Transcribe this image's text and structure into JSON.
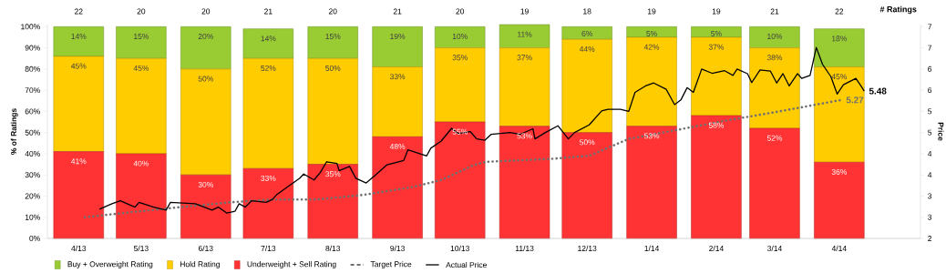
{
  "chart_data": {
    "type": "bar",
    "stacked": true,
    "x": [
      "2013-04-15",
      "2013-05-15",
      "2013-06-15",
      "2013-07-15",
      "2013-08-15",
      "2013-09-15",
      "2013-10-15",
      "2013-11-15",
      "2013-12-15",
      "2014-01-15",
      "2014-02-15",
      "2014-03-15",
      "2014-04-15"
    ],
    "xlim": [
      "2013-03-31",
      "2014-05-24"
    ],
    "xticks": [
      {
        "value": "2013-04-15",
        "label": "4/13"
      },
      {
        "value": "2013-05-15",
        "label": "5/13"
      },
      {
        "value": "2013-06-15",
        "label": "6/13"
      },
      {
        "value": "2013-07-15",
        "label": "7/13"
      },
      {
        "value": "2013-08-15",
        "label": "8/13"
      },
      {
        "value": "2013-09-15",
        "label": "9/13"
      },
      {
        "value": "2013-10-15",
        "label": "10/13"
      },
      {
        "value": "2013-11-15",
        "label": "11/13"
      },
      {
        "value": "2013-12-15",
        "label": "12/13"
      },
      {
        "value": "2014-01-15",
        "label": "1/14"
      },
      {
        "value": "2014-02-15",
        "label": "2/14"
      },
      {
        "value": "2014-03-15",
        "label": "3/14"
      },
      {
        "value": "2014-04-15",
        "label": "4/14"
      }
    ],
    "ylabel": "% of Ratings",
    "y2label": "Price",
    "ylim": [
      0,
      101
    ],
    "yticks": [
      {
        "value": 0,
        "label": "0%"
      },
      {
        "value": 10,
        "label": "10%"
      },
      {
        "value": 20,
        "label": "20%"
      },
      {
        "value": 30,
        "label": "30%"
      },
      {
        "value": 40,
        "label": "40%"
      },
      {
        "value": 50,
        "label": "50%"
      },
      {
        "value": 60,
        "label": "60%"
      },
      {
        "value": 70,
        "label": "70%"
      },
      {
        "value": 80,
        "label": "80%"
      },
      {
        "value": 90,
        "label": "90%"
      },
      {
        "value": 100,
        "label": "100%"
      }
    ],
    "y2lim": [
      2,
      7.05
    ],
    "y2ticks": [
      2,
      {
        "value": 2.5,
        "label": "3"
      },
      3,
      {
        "value": 3.5,
        "label": "4"
      },
      4,
      {
        "value": 4.5,
        "label": "5"
      },
      5,
      {
        "value": 5.5,
        "label": "6"
      },
      6,
      {
        "value": 6.5,
        "label": "7"
      },
      7
    ],
    "annotations": [
      "# Ratings",
      {
        "text": "22",
        "x": "2013-04-15",
        "y": 101
      },
      {
        "text": "20",
        "x": "2013-05-15",
        "y": 101
      },
      {
        "text": "20",
        "x": "2013-06-15",
        "y": 101
      },
      {
        "text": "21",
        "x": "2013-07-15",
        "y": 101
      },
      {
        "text": "20",
        "x": "2013-08-15",
        "y": 101
      },
      {
        "text": "21",
        "x": "2013-09-15",
        "y": 101
      },
      {
        "text": "20",
        "x": "2013-10-15",
        "y": 101
      },
      {
        "text": "19",
        "x": "2013-11-15",
        "y": 101
      },
      {
        "text": "18",
        "x": "2013-12-15",
        "y": 101
      },
      {
        "text": "19",
        "x": "2014-01-15",
        "y": 101
      },
      {
        "text": "19",
        "x": "2014-02-15",
        "y": 101
      },
      {
        "text": "21",
        "x": "2014-03-15",
        "y": 101
      },
      {
        "text": "22",
        "x": "2014-04-15",
        "y": 101
      }
    ],
    "legend": "bottom",
    "grid": false,
    "marker": "none",
    "series": [
      {
        "name": "Underweight + Sell Rating",
        "color": "#ff3333",
        "values": [
          41,
          40,
          30,
          33,
          35,
          48,
          55,
          53,
          50,
          53,
          58,
          52,
          36
        ],
        "value_labels": [
          "41%",
          "40%",
          "30%",
          "33%",
          "35%",
          "48%",
          "55%",
          "53%",
          "50%",
          "53%",
          "58%",
          "52%",
          "36%"
        ]
      },
      {
        "name": "Hold Rating",
        "color": "#ffcc00",
        "values": [
          45,
          45,
          50,
          52,
          50,
          33,
          35,
          37,
          44,
          42,
          37,
          38,
          45
        ],
        "value_labels": [
          "45%",
          "45%",
          "50%",
          "52%",
          "50%",
          "33%",
          "35%",
          "37%",
          "44%",
          "42%",
          "37%",
          "38%",
          "45%"
        ]
      },
      {
        "name": "Buy + Overweight Rating",
        "color": "#99cc33",
        "values": [
          14,
          15,
          20,
          14,
          15,
          19,
          10,
          11,
          6,
          5,
          5,
          10,
          18
        ],
        "value_labels": [
          "14%",
          "15%",
          "20%",
          "14%",
          "15%",
          "19%",
          "10%",
          "11%",
          "6%",
          "5%",
          "5%",
          "10%",
          "18%"
        ]
      },
      {
        "name": "Target Price",
        "type": "line",
        "axis": "y2",
        "color": "#707070",
        "line_style": "dotted",
        "x": [
          "2013-04-18",
          "2013-05-01",
          "2013-06-03",
          "2013-06-26",
          "2013-07-17",
          "2013-08-08",
          "2013-08-30",
          "2013-09-22",
          "2013-10-06",
          "2013-10-22",
          "2013-10-28",
          "2013-11-28",
          "2013-12-16",
          "2014-01-04",
          "2014-01-28",
          "2014-02-17",
          "2014-03-15",
          "2014-04-16"
        ],
        "values": [
          2.5,
          2.57,
          2.74,
          2.85,
          2.92,
          2.92,
          3.03,
          3.21,
          3.38,
          3.74,
          3.81,
          3.88,
          3.95,
          4.35,
          4.57,
          4.76,
          4.98,
          5.27
        ],
        "value_labels": [
          null,
          null,
          null,
          null,
          null,
          null,
          null,
          null,
          null,
          null,
          null,
          null,
          null,
          null,
          null,
          null,
          null,
          "5.27"
        ]
      },
      {
        "name": "Actual Price",
        "type": "line",
        "axis": "y2",
        "color": "#000000",
        "line_style": "solid",
        "x": [
          "2013-04-25",
          "2013-05-01",
          "2013-05-05",
          "2013-05-12",
          "2013-05-14",
          "2013-05-21",
          "2013-05-27",
          "2013-05-29",
          "2013-06-10",
          "2013-06-18",
          "2013-06-21",
          "2013-06-25",
          "2013-06-29",
          "2013-07-01",
          "2013-07-04",
          "2013-07-07",
          "2013-07-14",
          "2013-07-17",
          "2013-07-19",
          "2013-07-26",
          "2013-07-30",
          "2013-08-01",
          "2013-08-06",
          "2013-08-09",
          "2013-08-12",
          "2013-08-17",
          "2013-08-18",
          "2013-08-23",
          "2013-08-26",
          "2013-08-31",
          "2013-09-05",
          "2013-09-10",
          "2013-09-18",
          "2013-09-20",
          "2013-09-29",
          "2013-10-01",
          "2013-10-06",
          "2013-10-11",
          "2013-10-14",
          "2013-10-20",
          "2013-10-23",
          "2013-10-27",
          "2013-10-30",
          "2013-11-08",
          "2013-11-13",
          "2013-11-19",
          "2013-11-20",
          "2013-11-25",
          "2013-12-01",
          "2013-12-06",
          "2013-12-09",
          "2013-12-16",
          "2013-12-22",
          "2013-12-25",
          "2013-12-31",
          "2014-01-04",
          "2014-01-07",
          "2014-01-12",
          "2014-01-16",
          "2014-01-22",
          "2014-01-26",
          "2014-01-29",
          "2014-02-01",
          "2014-02-04",
          "2014-02-08",
          "2014-02-13",
          "2014-02-19",
          "2014-02-23",
          "2014-02-25",
          "2014-03-02",
          "2014-03-04",
          "2014-03-08",
          "2014-03-13",
          "2014-03-16",
          "2014-03-19",
          "2014-03-22",
          "2014-03-26",
          "2014-03-28",
          "2014-04-01",
          "2014-04-04",
          "2014-04-07",
          "2014-04-11",
          "2014-04-14",
          "2014-04-17",
          "2014-04-23",
          "2014-04-26",
          "2014-04-27"
        ],
        "values": [
          2.69,
          2.82,
          2.89,
          2.74,
          2.85,
          2.74,
          2.67,
          2.85,
          2.82,
          2.67,
          2.74,
          2.6,
          2.64,
          2.82,
          2.74,
          2.89,
          2.85,
          2.92,
          3.03,
          3.28,
          3.42,
          3.52,
          3.38,
          3.56,
          3.81,
          3.77,
          3.6,
          3.7,
          3.42,
          3.31,
          3.52,
          3.74,
          3.84,
          4.09,
          3.95,
          4.13,
          4.3,
          4.6,
          4.48,
          4.52,
          4.35,
          4.32,
          4.46,
          4.5,
          4.46,
          4.59,
          4.35,
          4.5,
          4.66,
          4.35,
          4.5,
          4.68,
          5.01,
          5.05,
          5.05,
          5.0,
          5.45,
          5.6,
          5.67,
          5.52,
          5.16,
          5.27,
          5.56,
          5.45,
          6.0,
          5.9,
          5.96,
          5.85,
          6.0,
          5.89,
          5.68,
          5.98,
          5.95,
          5.67,
          5.89,
          5.6,
          5.89,
          5.78,
          5.85,
          6.51,
          6.11,
          5.82,
          5.41,
          5.63,
          5.78,
          5.56,
          5.48
        ],
        "value_labels": [
          null,
          null,
          null,
          null,
          null,
          null,
          null,
          null,
          null,
          null,
          null,
          null,
          null,
          null,
          null,
          null,
          null,
          null,
          null,
          null,
          null,
          null,
          null,
          null,
          null,
          null,
          null,
          null,
          null,
          null,
          null,
          null,
          null,
          null,
          null,
          null,
          null,
          null,
          null,
          null,
          null,
          null,
          null,
          null,
          null,
          null,
          null,
          null,
          null,
          null,
          null,
          null,
          null,
          null,
          null,
          null,
          null,
          null,
          null,
          null,
          null,
          null,
          null,
          null,
          null,
          null,
          null,
          null,
          null,
          null,
          null,
          null,
          null,
          null,
          null,
          null,
          null,
          null,
          null,
          null,
          null,
          null,
          null,
          null,
          null,
          null,
          "5.48"
        ]
      }
    ]
  }
}
